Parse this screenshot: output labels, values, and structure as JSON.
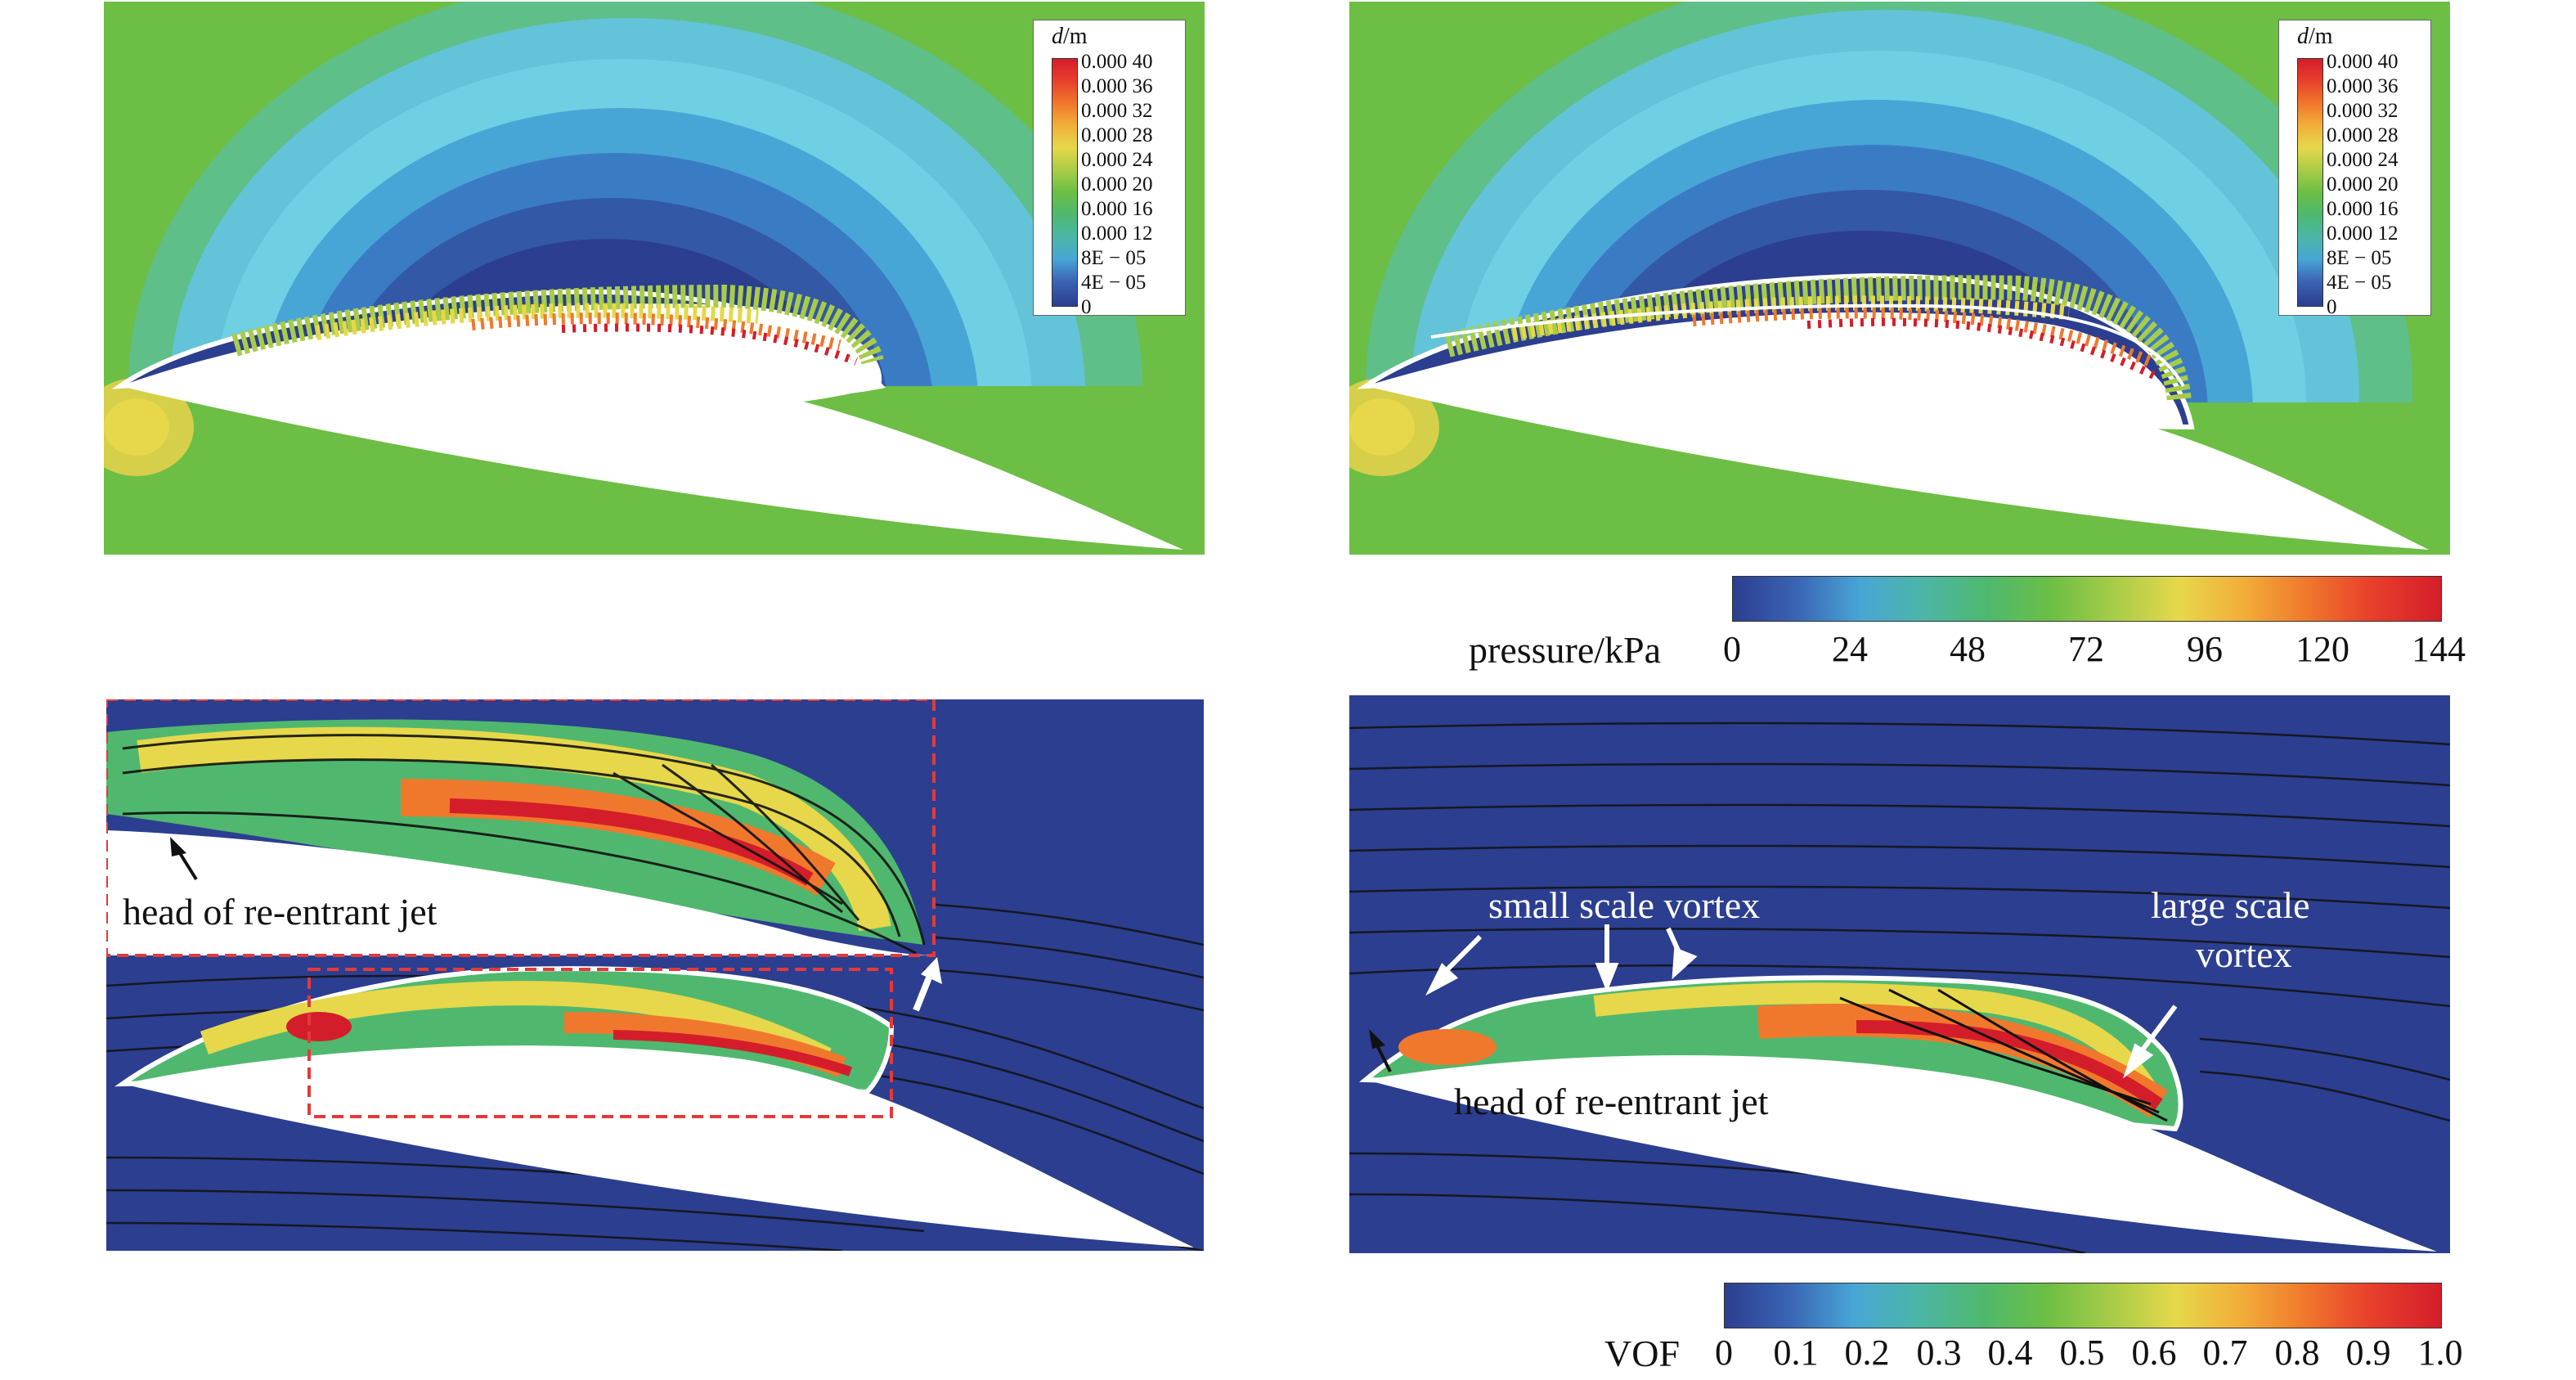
{
  "legend_d": {
    "title_var": "d",
    "title_unit": "/m",
    "labels": [
      "0.000 40",
      "0.000 36",
      "0.000 32",
      "0.000 28",
      "0.000 24",
      "0.000 20",
      "0.000 16",
      "0.000 12",
      "8E − 05",
      "4E − 05",
      "0"
    ]
  },
  "pressure_bar": {
    "title": "pressure/kPa",
    "ticks": [
      "0",
      "24",
      "48",
      "72",
      "96",
      "120",
      "144"
    ]
  },
  "vof_bar": {
    "title": "VOF",
    "ticks": [
      "0",
      "0.1",
      "0.2",
      "0.3",
      "0.4",
      "0.5",
      "0.6",
      "0.7",
      "0.8",
      "0.9",
      "1.0"
    ]
  },
  "annotations": {
    "head_jet_inset": "head of re-entrant jet",
    "small_vortex": "small scale vortex",
    "large_vortex_line1": "large scale",
    "large_vortex_line2": "vortex",
    "head_jet_right": "head of re-entrant jet"
  },
  "colors": {
    "deep_blue": "#2c3e8f",
    "mid_blue": "#3a7cc4",
    "cyan": "#63c3d8",
    "teal": "#58b99a",
    "green": "#6cbe45",
    "yellow": "#e6d84a",
    "orange": "#f0782c",
    "red": "#d41d2a",
    "inset_border": "#e23a3a"
  }
}
